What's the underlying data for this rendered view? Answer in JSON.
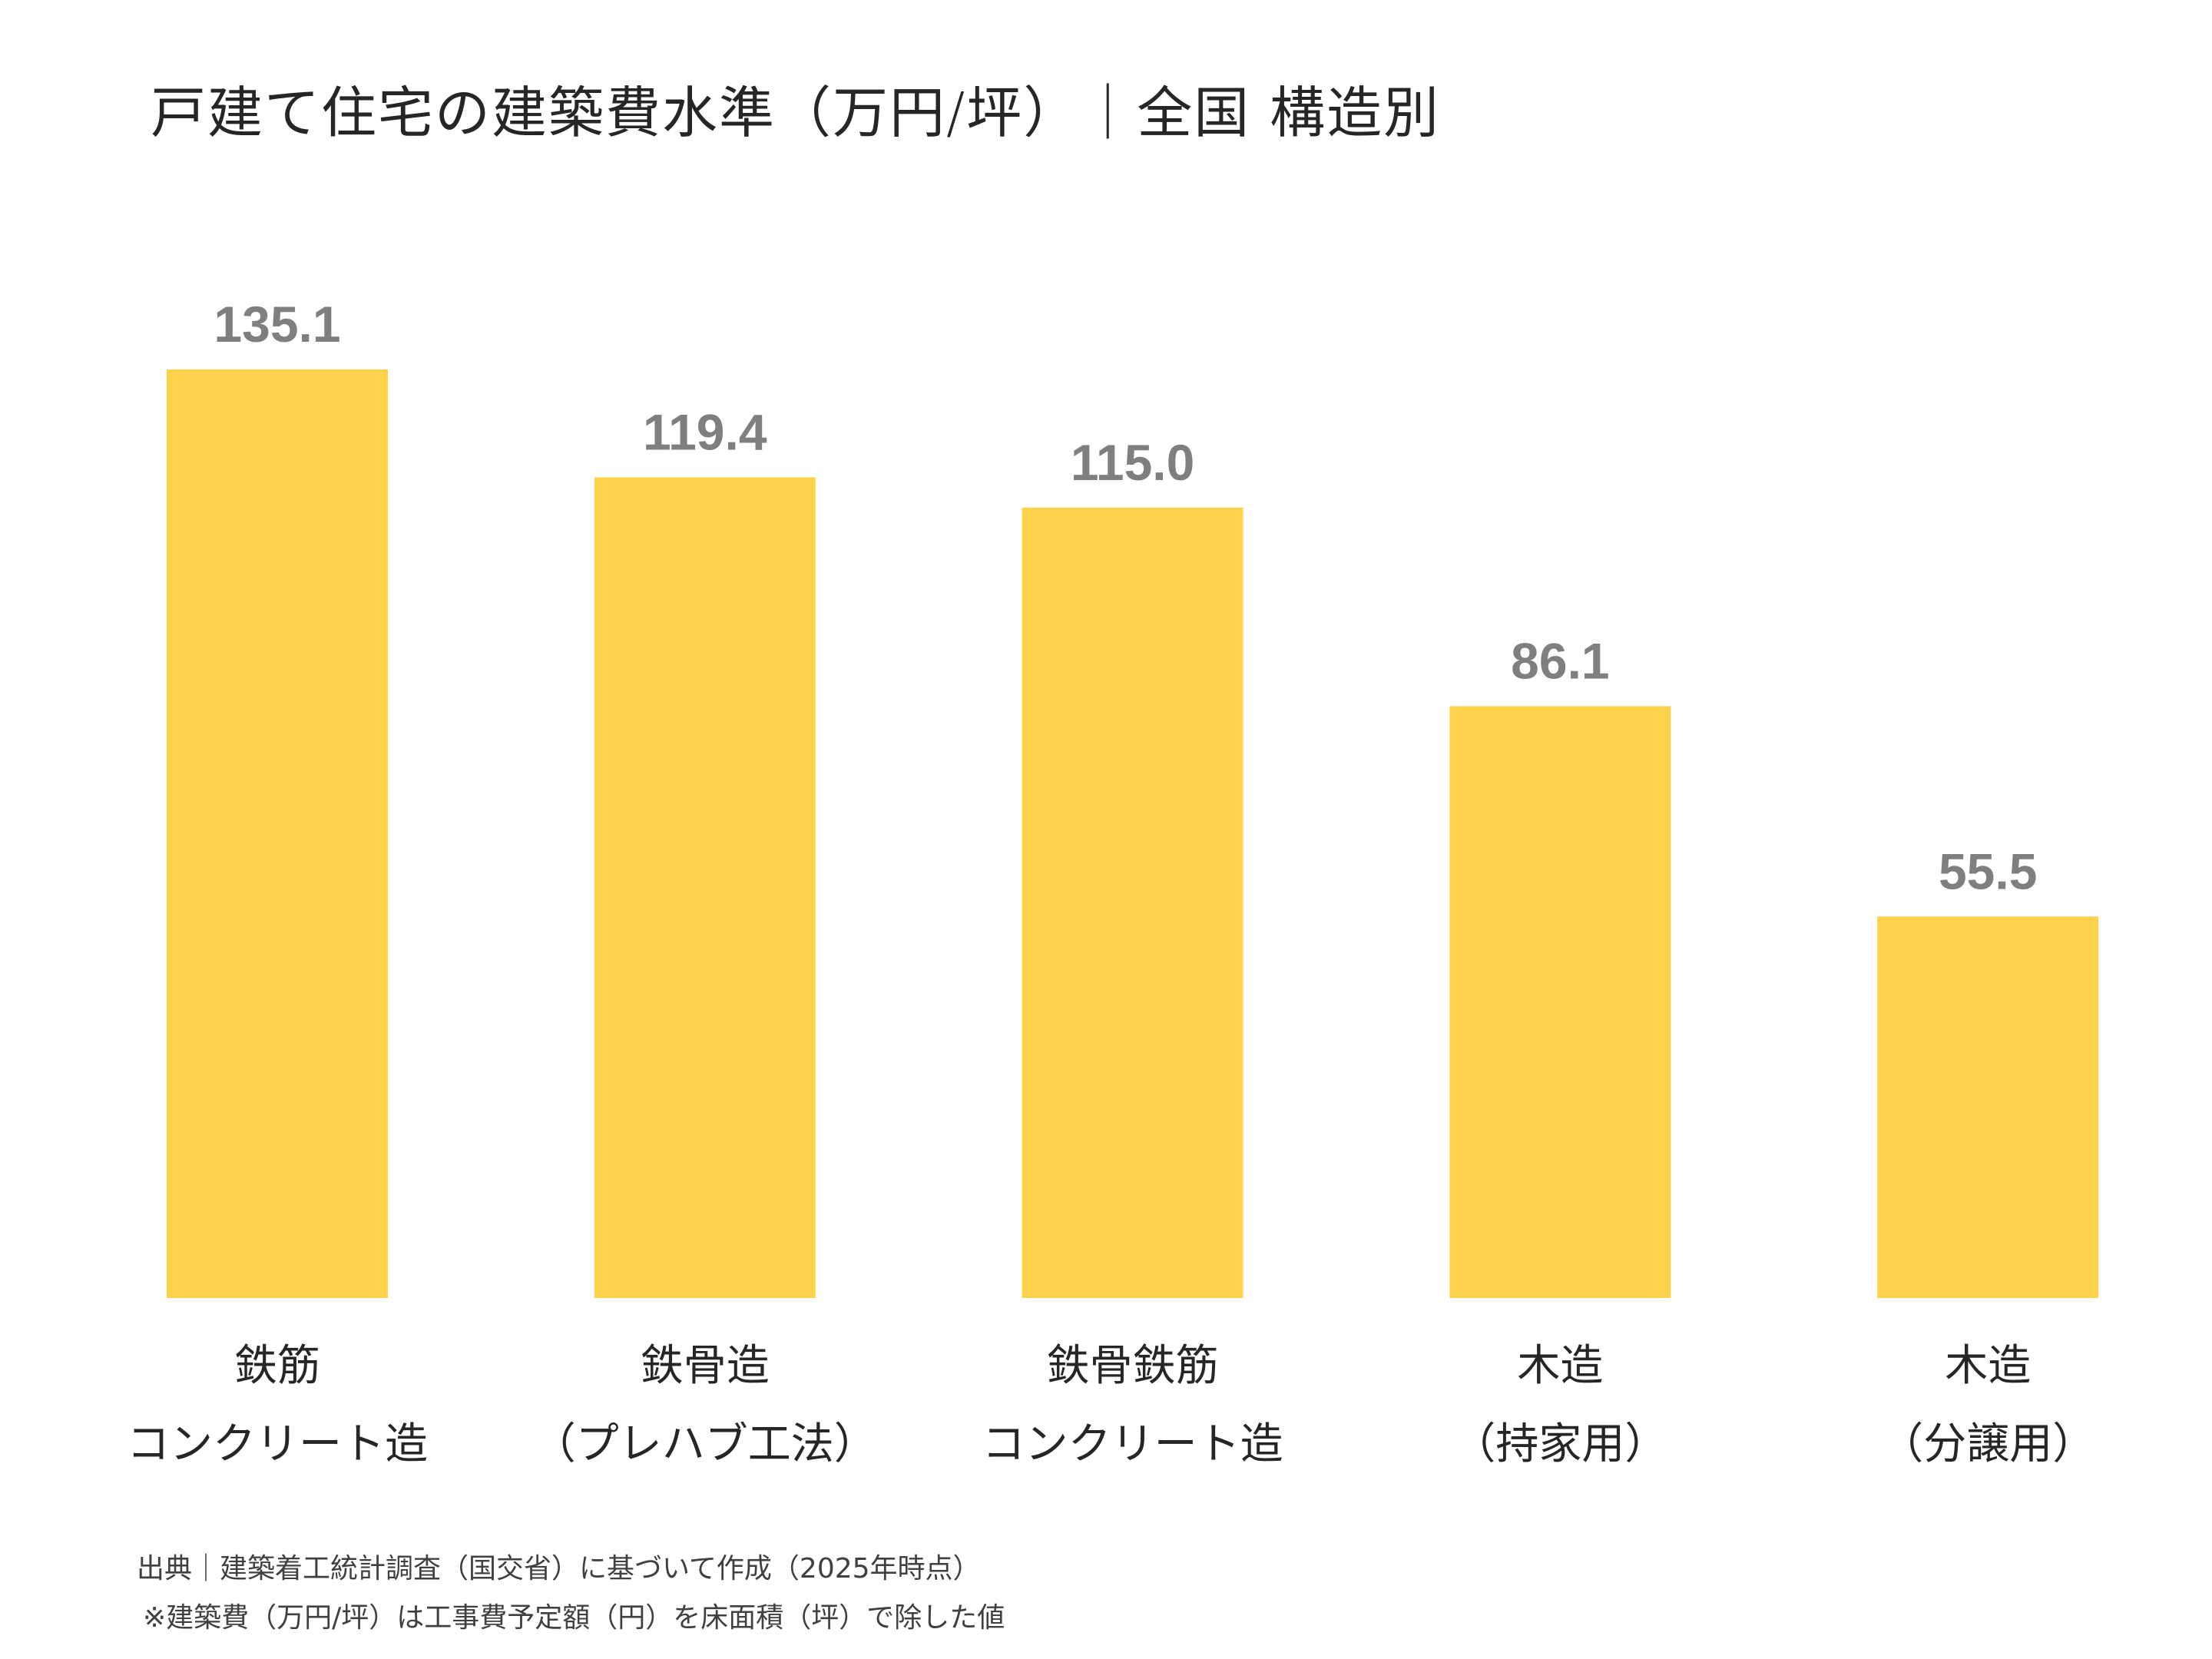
{
  "chart_data": {
    "type": "bar",
    "title": "戸建て住宅の建築費水準（万円/坪）｜全国 構造別",
    "categories": [
      [
        "鉄筋",
        "コンクリート造"
      ],
      [
        "鉄骨造",
        "（プレハブ工法）"
      ],
      [
        "鉄骨鉄筋",
        "コンクリート造"
      ],
      [
        "木造",
        "（持家用）"
      ],
      [
        "木造",
        "（分譲用）"
      ]
    ],
    "values": [
      135.1,
      119.4,
      115.0,
      86.1,
      55.5
    ],
    "value_labels": [
      "135.1",
      "119.4",
      "115.0",
      "86.1",
      "55.5"
    ],
    "xlabel": "",
    "ylabel": "",
    "ylim": [
      0,
      135.1
    ],
    "grid": false,
    "bar_color": "#FFD24C",
    "label_color": "#7F7F7F"
  },
  "footnotes": {
    "source": "出典｜建築着工統計調査（国交省）に基づいて作成（2025年時点）",
    "note": "※建築費（万円/坪）は工事費予定額（円）を床面積（坪）で除した値"
  }
}
